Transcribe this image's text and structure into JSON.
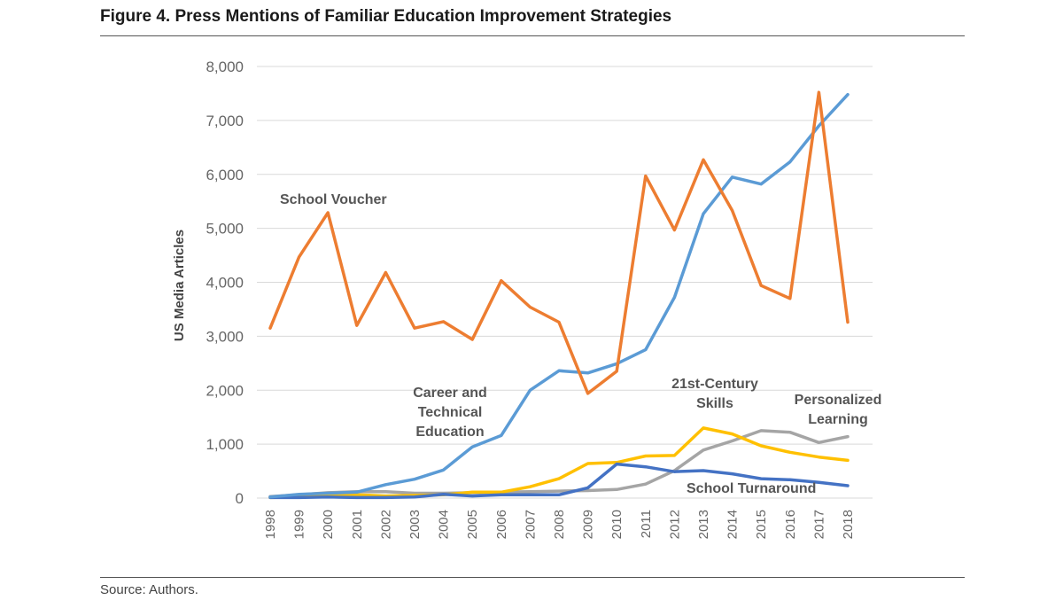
{
  "figure": {
    "title": "Figure 4. Press Mentions of Familiar Education Improvement Strategies",
    "source": "Source: Authors."
  },
  "chart_data": {
    "type": "line",
    "title": "Figure 4. Press Mentions of Familiar Education Improvement Strategies",
    "xlabel": "",
    "ylabel": "US Media Articles",
    "ylim": [
      0,
      8000
    ],
    "yticks": [
      0,
      1000,
      2000,
      3000,
      4000,
      5000,
      6000,
      7000,
      8000
    ],
    "ytick_labels": [
      "0",
      "1,000",
      "2,000",
      "3,000",
      "4,000",
      "5,000",
      "6,000",
      "7,000",
      "8,000"
    ],
    "grid": true,
    "legend": "none (series labeled inline)",
    "categories": [
      "1998",
      "1999",
      "2000",
      "2001",
      "2002",
      "2003",
      "2004",
      "2005",
      "2006",
      "2007",
      "2008",
      "2009",
      "2010",
      "2011",
      "2012",
      "2013",
      "2014",
      "2015",
      "2016",
      "2017",
      "2018"
    ],
    "series": [
      {
        "name": "School Voucher",
        "color": "#ED7D31",
        "label_lines": [
          "School Voucher"
        ],
        "values": [
          3150,
          4470,
          5290,
          3200,
          4180,
          3150,
          3270,
          2940,
          4030,
          3540,
          3260,
          1940,
          2350,
          5970,
          4970,
          6270,
          5330,
          3940,
          3700,
          7520,
          3260
        ]
      },
      {
        "name": "Career and Technical Education",
        "color": "#5B9BD5",
        "label_lines": [
          "Career and",
          "Technical",
          "Education"
        ],
        "values": [
          20,
          70,
          90,
          110,
          250,
          350,
          520,
          950,
          1160,
          2000,
          2360,
          2320,
          2490,
          2750,
          3720,
          5270,
          5950,
          5820,
          6230,
          6900,
          7480
        ]
      },
      {
        "name": "21st-Century Skills",
        "color": "#FFC000",
        "label_lines": [
          "21st-Century",
          "Skills"
        ],
        "values": [
          10,
          20,
          40,
          60,
          40,
          50,
          60,
          110,
          110,
          210,
          360,
          640,
          660,
          780,
          790,
          1300,
          1190,
          970,
          850,
          760,
          700
        ]
      },
      {
        "name": "Personalized Learning",
        "color": "#A5A5A5",
        "label_lines": [
          "Personalized",
          "Learning"
        ],
        "values": [
          30,
          60,
          100,
          120,
          120,
          90,
          90,
          100,
          110,
          120,
          130,
          140,
          160,
          260,
          510,
          890,
          1060,
          1250,
          1220,
          1030,
          1140
        ]
      },
      {
        "name": "School Turnaround",
        "color": "#4472C4",
        "label_lines": [
          "School Turnaround"
        ],
        "values": [
          10,
          10,
          20,
          10,
          10,
          20,
          70,
          40,
          60,
          60,
          60,
          190,
          630,
          580,
          490,
          510,
          450,
          360,
          340,
          290,
          230
        ]
      }
    ]
  }
}
